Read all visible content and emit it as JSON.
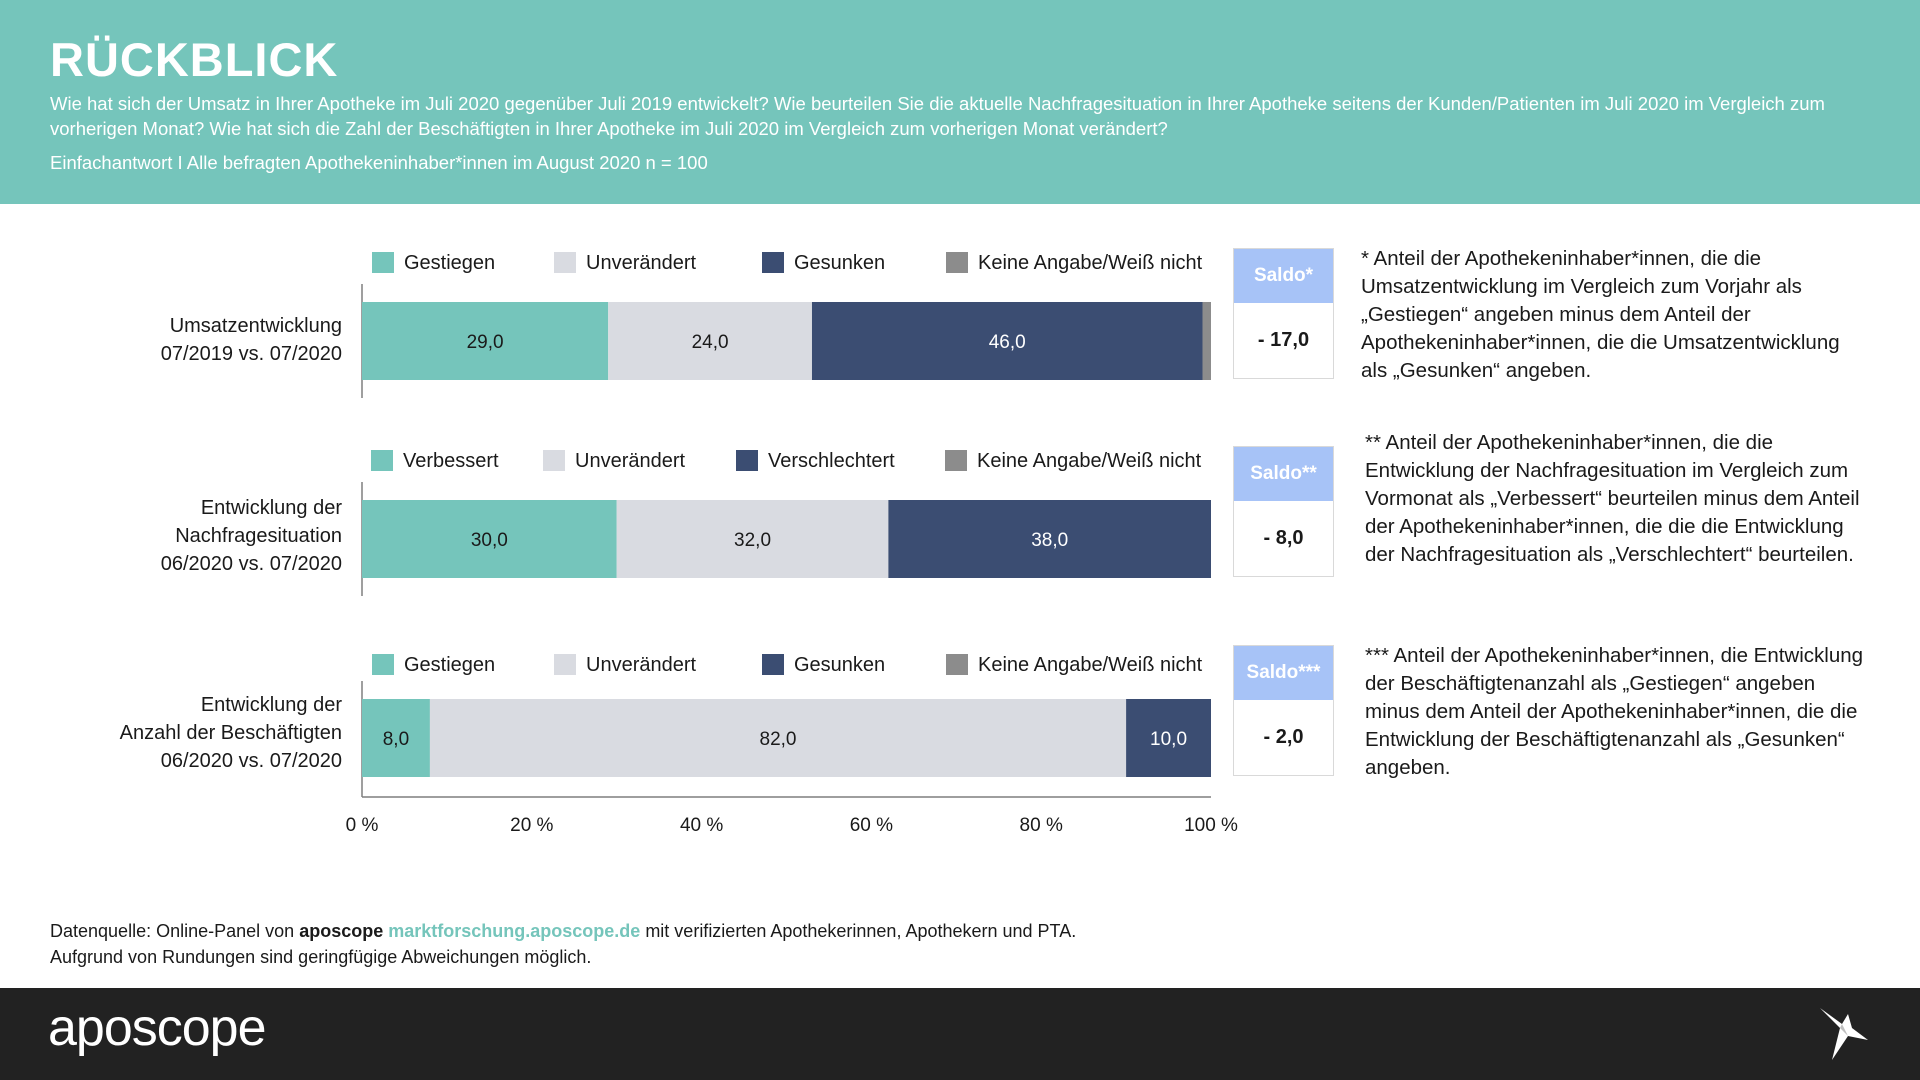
{
  "header": {
    "title": "RÜCKBLICK",
    "question": "Wie hat sich der Umsatz in Ihrer Apotheke im Juli 2020 gegenüber Juli 2019 entwickelt? Wie beurteilen Sie die aktuelle Nachfragesituation in Ihrer Apotheke seitens der Kunden/Patienten im Juli 2020 im Vergleich zum vorherigen Monat? Wie hat sich die Zahl der Beschäftigten in Ihrer Apotheke im Juli 2020 im Vergleich zum vorherigen Monat verändert?",
    "subtitle": "Einfachantwort I Alle befragten Apothekeninhaber*innen im August 2020 n = 100"
  },
  "colors": {
    "header_bg": "#75c5bb",
    "up": "#75c5bb",
    "same": "#d9dbe1",
    "down": "#3b4d72",
    "na": "#8c8c8c",
    "saldo_head": "#a7c3f7",
    "footer_bg": "#222222"
  },
  "chart_data": {
    "type": "bar",
    "orientation": "horizontal-stacked-100",
    "xlim": [
      0,
      100
    ],
    "ticks": [
      "0 %",
      "20 %",
      "40 %",
      "60 %",
      "80 %",
      "100 %"
    ],
    "rows": [
      {
        "label": "Umsatzentwicklung\n07/2019 vs. 07/2020",
        "legend": [
          "Gestiegen",
          "Unverändert",
          "Gesunken",
          "Keine Angabe/Weiß nicht"
        ],
        "values": [
          29.0,
          24.0,
          46.0,
          1.0
        ],
        "value_labels": [
          "29,0",
          "24,0",
          "46,0",
          ""
        ],
        "saldo_label": "Saldo*",
        "saldo": "- 17,0",
        "note": "* Anteil der Apothekeninhaber*innen, die die Umsatzentwicklung im Vergleich zum Vorjahr als „Gestiegen“ angeben minus dem Anteil der Apothekeninhaber*innen, die die Umsatzentwicklung als „Gesunken“ angeben."
      },
      {
        "label": "Entwicklung der\nNachfragesituation\n06/2020 vs. 07/2020",
        "legend": [
          "Verbessert",
          "Unverändert",
          "Verschlechtert",
          "Keine Angabe/Weiß nicht"
        ],
        "values": [
          30.0,
          32.0,
          38.0,
          0.0
        ],
        "value_labels": [
          "30,0",
          "32,0",
          "38,0",
          ""
        ],
        "saldo_label": "Saldo**",
        "saldo": "- 8,0",
        "note": "** Anteil der Apothekeninhaber*innen, die die Entwicklung der Nachfragesituation im Vergleich zum Vormonat als „Verbessert“ beurteilen minus dem Anteil der Apothekeninhaber*innen, die die die Entwicklung der Nachfragesituation als „Verschlechtert“ beurteilen."
      },
      {
        "label": "Entwicklung der\nAnzahl der Beschäftigten\n06/2020 vs. 07/2020",
        "legend": [
          "Gestiegen",
          "Unverändert",
          "Gesunken",
          "Keine Angabe/Weiß nicht"
        ],
        "values": [
          8.0,
          82.0,
          10.0,
          0.0
        ],
        "value_labels": [
          "8,0",
          "82,0",
          "10,0",
          ""
        ],
        "saldo_label": "Saldo***",
        "saldo": "- 2,0",
        "note": "*** Anteil der Apothekeninhaber*innen, die Entwicklung der Beschäftigtenanzahl als „Gestiegen“ angeben minus dem Anteil der Apothekeninhaber*innen, die die Entwicklung der Beschäftigtenanzahl als „Gesunken“ angeben."
      }
    ]
  },
  "source": {
    "prefix": "Datenquelle: Online-Panel von",
    "brand": "aposcope",
    "url": "marktforschung.aposcope.de",
    "suffix": "mit verifizierten Apothekerinnen, Apothekern und PTA.",
    "line2": "Aufgrund von Rundungen sind geringfügige Abweichungen möglich."
  },
  "footer": {
    "brand": "aposcope",
    "logo_icon": "bird-logo-icon"
  }
}
